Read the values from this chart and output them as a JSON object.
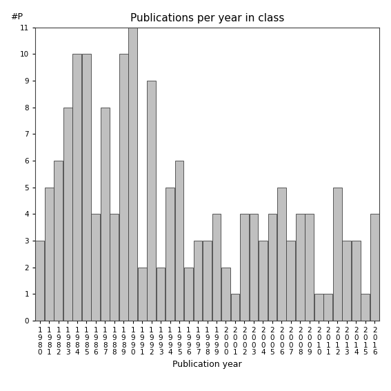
{
  "title": "Publications per year in class",
  "xlabel": "Publication year",
  "ylabel": "#P",
  "years": [
    "1980",
    "1981",
    "1982",
    "1983",
    "1984",
    "1985",
    "1986",
    "1987",
    "1988",
    "1989",
    "1990",
    "1991",
    "1992",
    "1993",
    "1994",
    "1995",
    "1996",
    "1997",
    "1998",
    "1999",
    "2000",
    "2001",
    "2002",
    "2003",
    "2004",
    "2005",
    "2006",
    "2007",
    "2008",
    "2009",
    "2010",
    "2011",
    "2012",
    "2013",
    "2014",
    "2015",
    "2016"
  ],
  "values": [
    3,
    5,
    6,
    8,
    10,
    10,
    4,
    8,
    4,
    10,
    11,
    2,
    9,
    2,
    5,
    6,
    2,
    3,
    3,
    4,
    2,
    1,
    4,
    4,
    3,
    4,
    5,
    3,
    4,
    4,
    1,
    1,
    5,
    3,
    3,
    1,
    4
  ],
  "bar_color": "#c0c0c0",
  "bar_edge_color": "#404040",
  "ylim": [
    0,
    11
  ],
  "yticks": [
    0,
    1,
    2,
    3,
    4,
    5,
    6,
    7,
    8,
    9,
    10,
    11
  ],
  "bg_color": "#ffffff",
  "title_fontsize": 11,
  "label_fontsize": 9,
  "tick_fontsize": 7.5
}
